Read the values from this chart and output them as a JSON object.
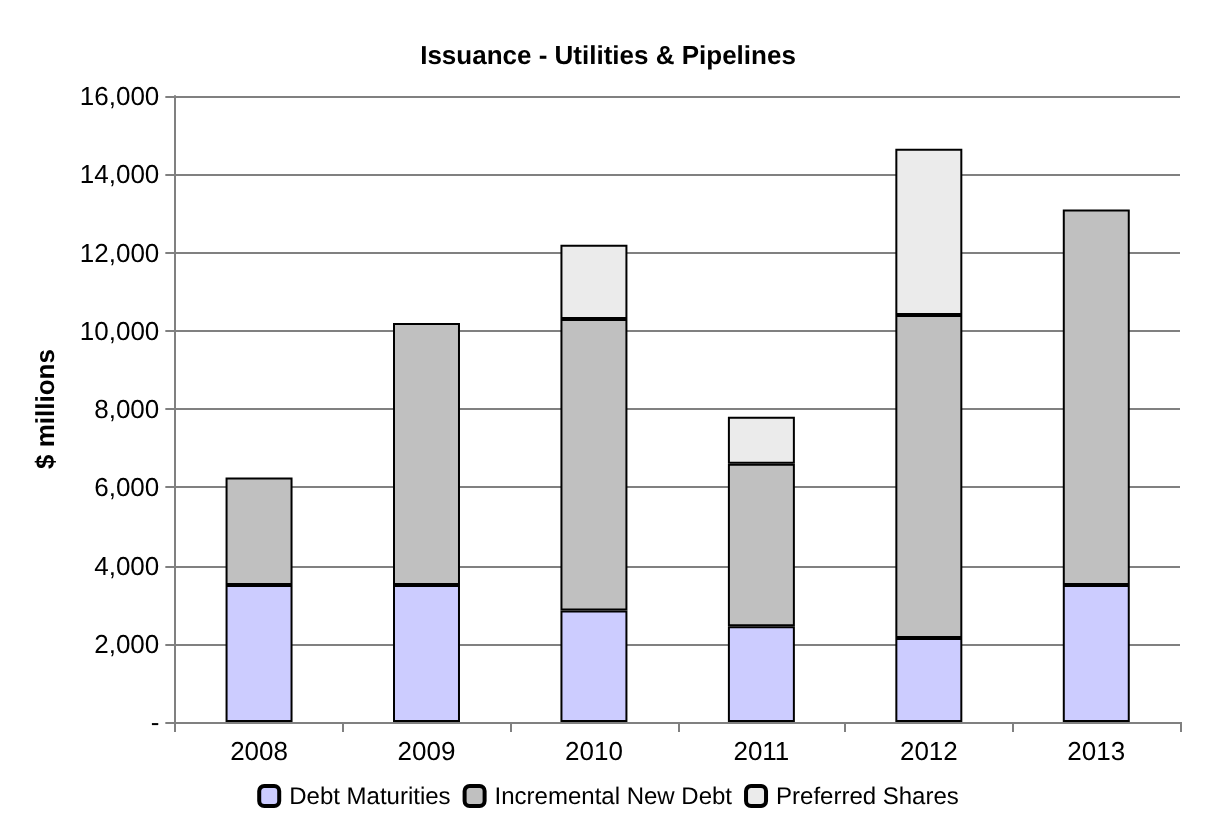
{
  "chart_data": {
    "type": "bar",
    "title": "Issuance - Utilities & Pipelines",
    "ylabel": "$ millions",
    "categories": [
      "2008",
      "2009",
      "2010",
      "2011",
      "2012",
      "2013"
    ],
    "stacked": true,
    "series": [
      {
        "name": "Debt Maturities",
        "color": "#ccccff",
        "values": [
          3500,
          3500,
          2850,
          2450,
          2150,
          3500
        ]
      },
      {
        "name": "Incremental New Debt",
        "color": "#c0c0c0",
        "values": [
          2750,
          6700,
          7450,
          4150,
          8250,
          9600
        ]
      },
      {
        "name": "Preferred Shares",
        "color": "#ebebeb",
        "values": [
          null,
          null,
          1900,
          1200,
          4250,
          null
        ]
      }
    ],
    "ylim": [
      0,
      16000
    ],
    "yticks": [
      {
        "value": 0,
        "label": "-"
      },
      {
        "value": 2000,
        "label": "2,000"
      },
      {
        "value": 4000,
        "label": "4,000"
      },
      {
        "value": 6000,
        "label": "6,000"
      },
      {
        "value": 8000,
        "label": "8,000"
      },
      {
        "value": 10000,
        "label": "10,000"
      },
      {
        "value": 12000,
        "label": "12,000"
      },
      {
        "value": 14000,
        "label": "14,000"
      },
      {
        "value": 16000,
        "label": "16,000"
      }
    ],
    "grid": "y",
    "legend": "bottom"
  }
}
